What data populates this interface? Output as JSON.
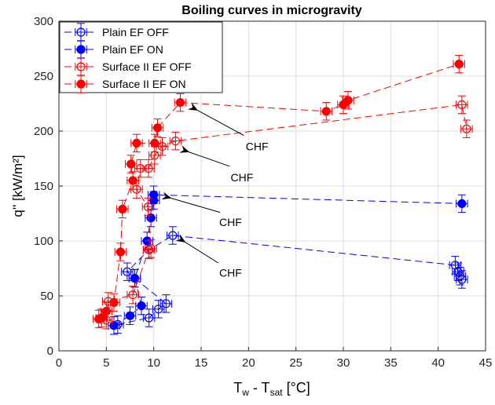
{
  "chart_data": {
    "type": "scatter",
    "title": "Boiling curves in microgravity",
    "xlabel": {
      "main": "T",
      "sub1": "w",
      "mid": " - T",
      "sub2": "sat",
      "unit": " [°C]"
    },
    "ylabel": "q'' [kW/m²]",
    "xlim": [
      0,
      45
    ],
    "ylim": [
      0,
      300
    ],
    "xticks": [
      0,
      5,
      10,
      15,
      20,
      25,
      30,
      35,
      40,
      45
    ],
    "yticks": [
      0,
      50,
      100,
      150,
      200,
      250,
      300
    ],
    "grid": true,
    "legend_position": "top-left",
    "xerr": 0.6,
    "yerr": 8,
    "series": [
      {
        "name": "Plain EF OFF",
        "color": "#0000ff",
        "marker": "open",
        "x": [
          6.2,
          9.5,
          10.5,
          11.3,
          8.0,
          7.2,
          9.5,
          12.0,
          41.8,
          42.1,
          42.3,
          42.5
        ],
        "y": [
          24,
          30,
          38,
          43,
          66,
          72,
          92,
          105,
          78,
          72,
          68,
          65
        ]
      },
      {
        "name": "Plain EF ON",
        "color": "#0000ff",
        "marker": "filled",
        "x": [
          5.8,
          7.5,
          8.7,
          8.0,
          9.3,
          9.7,
          10.0,
          10.0,
          42.5
        ],
        "y": [
          23,
          32,
          41,
          66,
          100,
          121,
          137,
          142,
          134
        ]
      },
      {
        "name": "Surface II EF OFF",
        "color": "#ff0000",
        "marker": "open",
        "x": [
          5.0,
          5.2,
          7.8,
          9.5,
          9.7,
          9.4,
          8.2,
          8.6,
          9.45,
          10.1,
          10.9,
          12.3,
          42.5,
          43.0
        ],
        "y": [
          28,
          45,
          51,
          92,
          93,
          131,
          147,
          166,
          166,
          178,
          186,
          191,
          224,
          202
        ]
      },
      {
        "name": "Surface II EF ON",
        "color": "#ff0000",
        "marker": "filled",
        "x": [
          4.2,
          4.5,
          5.0,
          5.8,
          6.5,
          6.7,
          7.8,
          7.6,
          8.2,
          10.1,
          10.4,
          12.8,
          28.2,
          30.0,
          30.5,
          42.2
        ],
        "y": [
          29,
          30,
          36,
          44,
          90,
          129,
          155,
          170,
          189,
          189,
          203,
          226,
          218,
          224,
          228,
          261
        ]
      }
    ],
    "annotations": [
      {
        "text": "CHF",
        "x": 20.9,
        "y": 186,
        "arrow_from": [
          19.5,
          196
        ],
        "arrow_to": [
          14.6,
          219
        ]
      },
      {
        "text": "CHF",
        "x": 19.3,
        "y": 158,
        "arrow_from": [
          18.0,
          168
        ],
        "arrow_to": [
          13.7,
          181
        ]
      },
      {
        "text": "CHF",
        "x": 18.1,
        "y": 117,
        "arrow_from": [
          17.0,
          126
        ],
        "arrow_to": [
          11.8,
          139
        ]
      },
      {
        "text": "CHF",
        "x": 18.1,
        "y": 71,
        "arrow_from": [
          16.8,
          80
        ],
        "arrow_to": [
          13.3,
          99
        ]
      }
    ]
  }
}
